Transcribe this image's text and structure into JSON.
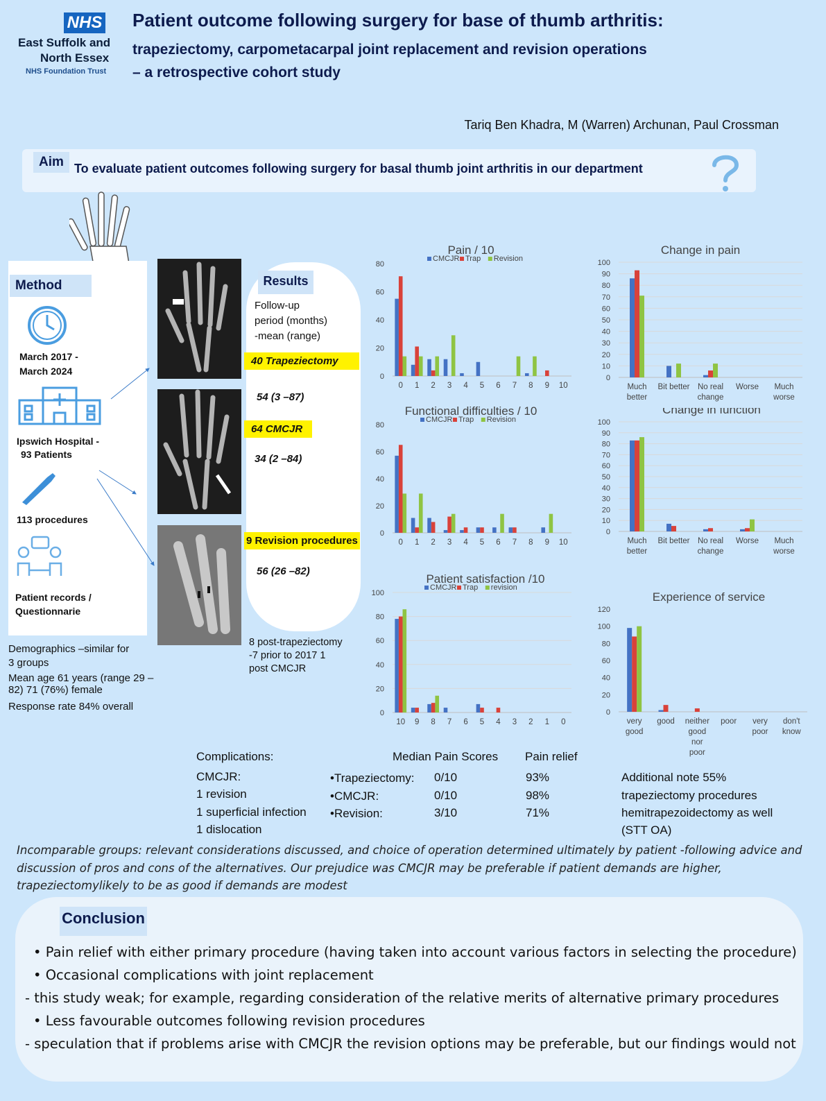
{
  "logo": {
    "badge": "NHS",
    "line1": "East Suffolk and",
    "line2": "North Essex",
    "line3": "NHS Foundation Trust"
  },
  "title": {
    "line1": "Patient outcome following surgery for base of thumb arthritis:",
    "line2": "trapeziectomy, carpometacarpal joint replacement and revision operations",
    "line3": "– a retrospective cohort study"
  },
  "authors": "Tariq Ben Khadra, M (Warren) Archunan, Paul Crossman",
  "aim": {
    "label": "Aim",
    "text": "To evaluate patient outcomes following surgery for basal thumb joint arthritis in our department",
    "icon": "question-mark-icon"
  },
  "method": {
    "label": "Method",
    "dates": [
      "March 2017 -",
      "March 2024"
    ],
    "hospital": [
      "Ipswich Hospital -",
      "93 Patients"
    ],
    "procedures": "113 procedures",
    "records": [
      "Patient records /",
      "Questionnarie"
    ],
    "demographics": [
      "Demographics –similar for",
      "3 groups",
      "Mean age 61 years (range 29 –",
      "82) 71 (76%) female",
      "Response rate 84% overall"
    ]
  },
  "results": {
    "label": "Results",
    "followup": [
      "Follow-up",
      "period (months)",
      "-mean (range)"
    ],
    "groups": [
      {
        "name": "40 Trapeziectomy",
        "stat": "54 (3 –87)"
      },
      {
        "name": "64 CMCJR",
        "stat": "34 (2 –84)"
      },
      {
        "name": "9 Revision procedures",
        "stat": "56 (26 –82)"
      }
    ],
    "revision_note": [
      "8 post-trapeziectomy",
      "-7 prior to 2017 1",
      "post CMCJR"
    ]
  },
  "colors": {
    "cmcjr": "#4472c4",
    "trap": "#d9423a",
    "revision": "#8fc443"
  },
  "chart_data": [
    {
      "type": "bar",
      "title": "Pain / 10",
      "categories": [
        "0",
        "1",
        "2",
        "3",
        "4",
        "5",
        "6",
        "7",
        "8",
        "9",
        "10"
      ],
      "series": [
        {
          "name": "CMCJR",
          "values": [
            55,
            8,
            12,
            12,
            2,
            10,
            0,
            0,
            2,
            0,
            0
          ]
        },
        {
          "name": "Trap",
          "values": [
            71,
            21,
            4,
            0,
            0,
            0,
            0,
            0,
            0,
            4,
            0
          ]
        },
        {
          "name": "Revision",
          "values": [
            14,
            14,
            14,
            29,
            0,
            0,
            0,
            14,
            14,
            0,
            0
          ]
        }
      ],
      "yticks": [
        "0",
        "20",
        "40",
        "60",
        "80"
      ],
      "ylim": [
        0,
        80
      ]
    },
    {
      "type": "bar",
      "title": "Functional difficulties / 10",
      "categories": [
        "0",
        "1",
        "2",
        "3",
        "4",
        "5",
        "6",
        "7",
        "8",
        "9",
        "10"
      ],
      "series": [
        {
          "name": "CMCJR",
          "values": [
            57,
            11,
            11,
            2,
            2,
            4,
            4,
            4,
            0,
            4,
            0
          ]
        },
        {
          "name": "Trap",
          "values": [
            65,
            4,
            8,
            12,
            4,
            4,
            0,
            4,
            0,
            0,
            0
          ]
        },
        {
          "name": "Revision",
          "values": [
            29,
            29,
            0,
            14,
            0,
            0,
            14,
            0,
            0,
            14,
            0
          ]
        }
      ],
      "yticks": [
        "0",
        "20",
        "40",
        "60",
        "80"
      ],
      "ylim": [
        0,
        80
      ]
    },
    {
      "type": "bar",
      "title": "Patient satisfaction /10",
      "categories": [
        "10",
        "9",
        "8",
        "7",
        "6",
        "5",
        "4",
        "3",
        "2",
        "1",
        "0"
      ],
      "series": [
        {
          "name": "CMCJR",
          "values": [
            78,
            4,
            7,
            4,
            0,
            7,
            0,
            0,
            0,
            0,
            0
          ]
        },
        {
          "name": "Trap",
          "values": [
            80,
            4,
            8,
            0,
            0,
            4,
            4,
            0,
            0,
            0,
            0
          ]
        },
        {
          "name": "revision",
          "values": [
            86,
            0,
            14,
            0,
            0,
            0,
            0,
            0,
            0,
            0,
            0
          ]
        }
      ],
      "yticks": [
        "0",
        "20",
        "40",
        "60",
        "80",
        "100"
      ],
      "ylim": [
        0,
        100
      ]
    },
    {
      "type": "bar",
      "title": "Change in pain",
      "categories": [
        [
          "Much",
          "better"
        ],
        [
          "Bit better"
        ],
        [
          "No real",
          "change"
        ],
        [
          "Worse"
        ],
        [
          "Much",
          "worse"
        ]
      ],
      "series": [
        {
          "name": "CMCJR",
          "values": [
            86,
            10,
            2,
            0,
            0
          ]
        },
        {
          "name": "Trap",
          "values": [
            93,
            0,
            6,
            0,
            0
          ]
        },
        {
          "name": "Revision",
          "values": [
            71,
            12,
            12,
            0,
            0
          ]
        }
      ],
      "yticks": [
        "0",
        "10",
        "20",
        "30",
        "40",
        "50",
        "60",
        "70",
        "80",
        "90",
        "100"
      ],
      "ylim": [
        0,
        100
      ]
    },
    {
      "type": "bar",
      "title": "Change in function",
      "categories": [
        [
          "Much",
          "better"
        ],
        [
          "Bit better"
        ],
        [
          "No real",
          "change"
        ],
        [
          "Worse"
        ],
        [
          "Much",
          "worse"
        ]
      ],
      "series": [
        {
          "name": "CMCJR",
          "values": [
            83,
            7,
            2,
            2,
            0
          ]
        },
        {
          "name": "Trap",
          "values": [
            83,
            5,
            3,
            3,
            0
          ]
        },
        {
          "name": "Revision",
          "values": [
            86,
            0,
            0,
            11,
            0
          ]
        }
      ],
      "yticks": [
        "0",
        "10",
        "20",
        "30",
        "40",
        "50",
        "60",
        "70",
        "80",
        "90",
        "100"
      ],
      "ylim": [
        0,
        100
      ]
    },
    {
      "type": "bar",
      "title": "Experience of service",
      "categories": [
        [
          "very",
          "good"
        ],
        [
          "good"
        ],
        [
          "neither",
          "good",
          "nor",
          "poor"
        ],
        [
          "poor"
        ],
        [
          "very",
          "poor"
        ],
        [
          "don't",
          "know"
        ]
      ],
      "series": [
        {
          "name": "CMCJR",
          "values": [
            98,
            2,
            0,
            0,
            0,
            0
          ]
        },
        {
          "name": "Trap",
          "values": [
            88,
            8,
            4,
            0,
            0,
            0
          ]
        },
        {
          "name": "Revision",
          "values": [
            100,
            0,
            0,
            0,
            0,
            0
          ]
        }
      ],
      "yticks": [
        "0",
        "20",
        "40",
        "60",
        "80",
        "100",
        "120"
      ],
      "ylim": [
        0,
        120
      ]
    }
  ],
  "complications": {
    "title": "Complications:",
    "lines": [
      "CMCJR:",
      "1 revision",
      "1 superficial infection",
      "1 dislocation"
    ]
  },
  "median": {
    "title": "Median Pain Scores",
    "relief_title": "Pain relief",
    "rows": [
      {
        "name": "•Trapeziectomy:",
        "score": "0/10",
        "relief": "93%"
      },
      {
        "name": "•CMCJR:",
        "score": "0/10",
        "relief": "98%"
      },
      {
        "name": "•Revision:",
        "score": "3/10",
        "relief": "71%"
      }
    ]
  },
  "note": [
    "Additional note 55%",
    "trapeziectomy procedures",
    "hemitrapezoidectomy as well",
    "(STT OA)"
  ],
  "incomparable": "Incomparable groups: relevant considerations discussed, and choice of operation determined ultimately by patient -following advice and discussion of pros and cons of the alternatives. Our prejudice was CMCJR may be preferable if patient demands are higher, trapeziectomylikely to be as good if demands are modest",
  "conclusion": {
    "label": "Conclusion",
    "lines": [
      "•  Pain relief with either primary procedure (having taken into account various factors in selecting the procedure)",
      "•  Occasional complications with joint replacement",
      "- this study weak; for example, regarding consideration of the relative merits of alternative primary procedures",
      "•  Less favourable outcomes following revision procedures",
      "- speculation that if problems arise with CMCJR the revision options may be preferable, but our findings would not"
    ]
  }
}
